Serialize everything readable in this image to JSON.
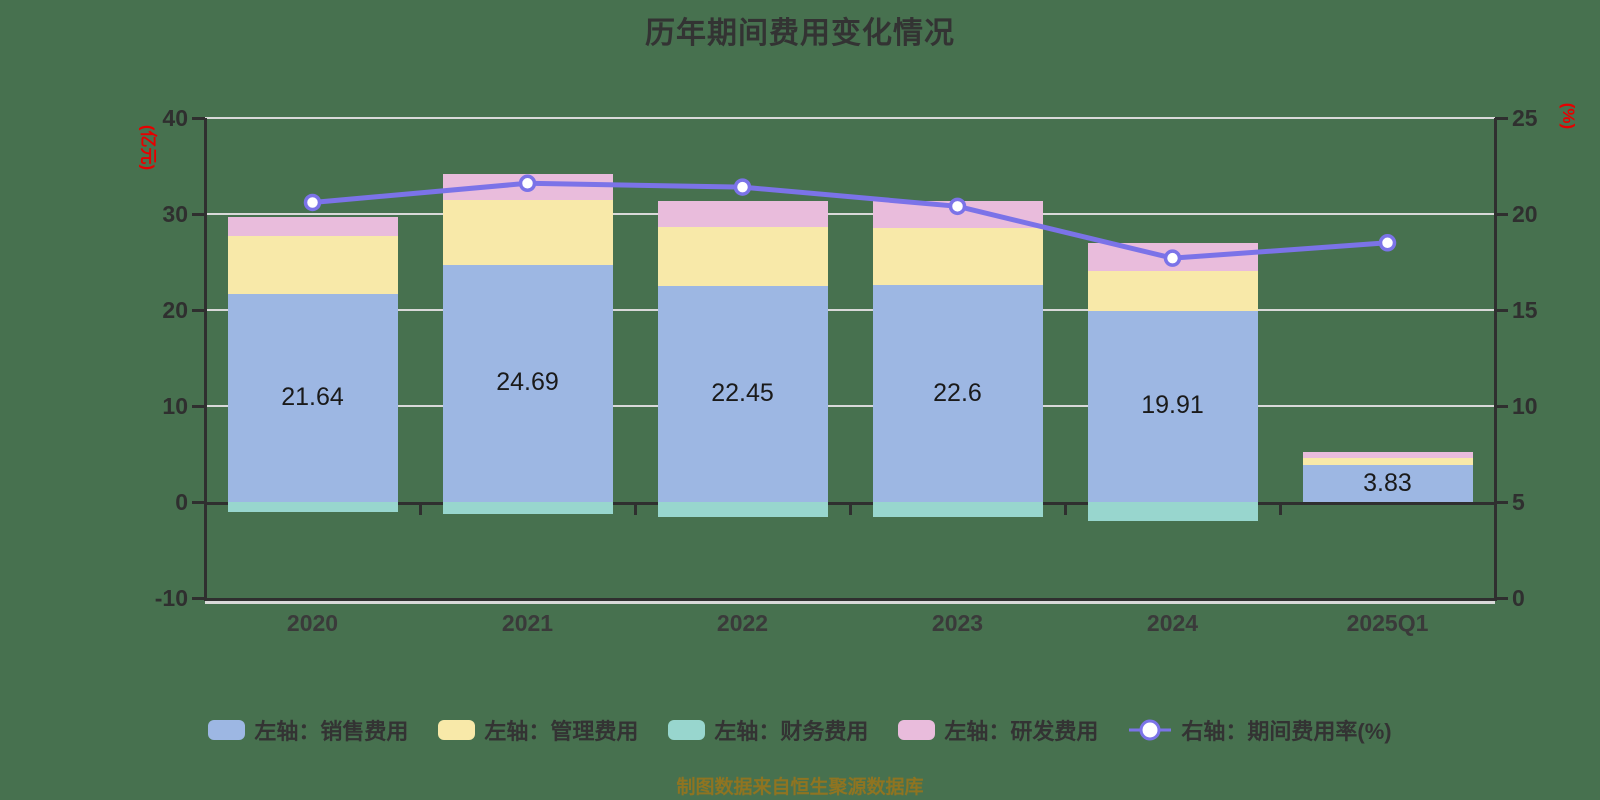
{
  "title": "历年期间费用变化情况",
  "footer": "制图数据来自恒生聚源数据库",
  "colors": {
    "background": "#47714f",
    "sales": "#9db7e3",
    "admin": "#f8e9a9",
    "finance": "#98d6ce",
    "rnd": "#e9bcdc",
    "line": "#7b73e8",
    "marker_fill": "#ffffff",
    "axis": "#2f2f2f",
    "grid": "#d9d9d9",
    "title_text": "#333333",
    "axis_unit_red": "#e60000",
    "footer_gold": "#8f7421"
  },
  "chart_data": {
    "type": "bar",
    "subtype": "stacked-bar-with-line",
    "title": "历年期间费用变化情况",
    "categories": [
      "2020",
      "2021",
      "2022",
      "2023",
      "2024",
      "2025Q1"
    ],
    "series": [
      {
        "name": "左轴：销售费用",
        "type": "bar",
        "axis": "left",
        "color_key": "sales",
        "values": [
          21.64,
          24.69,
          22.45,
          22.6,
          19.91,
          3.83
        ]
      },
      {
        "name": "左轴：管理费用",
        "type": "bar",
        "axis": "left",
        "color_key": "admin",
        "values": [
          6.1,
          6.8,
          6.2,
          5.9,
          4.2,
          0.8
        ]
      },
      {
        "name": "左轴：财务费用",
        "type": "bar",
        "axis": "left",
        "color_key": "finance",
        "values": [
          -1.0,
          -1.2,
          -1.6,
          -1.6,
          -2.0,
          0
        ]
      },
      {
        "name": "左轴：研发费用",
        "type": "bar",
        "axis": "left",
        "color_key": "rnd",
        "values": [
          1.9,
          2.7,
          2.7,
          2.9,
          2.9,
          0.6
        ]
      },
      {
        "name": "右轴：期间费用率(%)",
        "type": "line",
        "axis": "right",
        "color_key": "line",
        "values": [
          20.6,
          21.6,
          21.4,
          20.4,
          17.7,
          18.5
        ]
      }
    ],
    "bar_labels": [
      "21.64",
      "24.69",
      "22.45",
      "22.6",
      "19.91",
      "3.83"
    ],
    "left_axis": {
      "label": "(亿元)",
      "min": -10,
      "max": 40,
      "ticks": [
        40,
        30,
        20,
        10,
        0,
        -10
      ]
    },
    "right_axis": {
      "label": "(%)",
      "min": 0,
      "max": 25,
      "ticks": [
        25,
        20,
        15,
        10,
        5,
        0
      ]
    },
    "grid_values": [
      40,
      30,
      20,
      10
    ],
    "legend_position": "bottom"
  },
  "legend": {
    "items": [
      {
        "label": "左轴：销售费用",
        "swatch": "sales"
      },
      {
        "label": "左轴：管理费用",
        "swatch": "admin"
      },
      {
        "label": "左轴：财务费用",
        "swatch": "finance"
      },
      {
        "label": "左轴：研发费用",
        "swatch": "rnd"
      },
      {
        "label": "右轴：期间费用率(%)",
        "swatch": "line"
      }
    ]
  }
}
